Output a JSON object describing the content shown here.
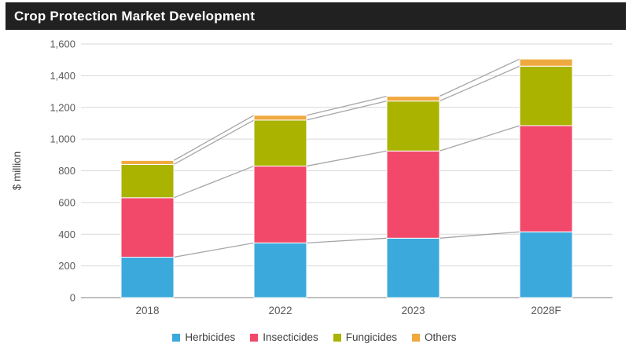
{
  "title": "Crop Protection Market Development",
  "chart_data": {
    "type": "bar",
    "stacked": true,
    "title": "Crop Protection Market Development",
    "categories": [
      "2018",
      "2022",
      "2023",
      "2028F"
    ],
    "series": [
      {
        "name": "Herbicides",
        "color": "#3BA9DC",
        "values": [
          255,
          345,
          375,
          415
        ]
      },
      {
        "name": "Insecticides",
        "color": "#F2496B",
        "values": [
          375,
          485,
          550,
          670
        ]
      },
      {
        "name": "Fungicides",
        "color": "#A9B300",
        "values": [
          210,
          290,
          315,
          375
        ]
      },
      {
        "name": "Others",
        "color": "#EFA93E",
        "values": [
          25,
          30,
          30,
          45
        ]
      }
    ],
    "stack_totals": [
      865,
      1150,
      1270,
      1505
    ],
    "xlabel": "",
    "ylabel": "$ million",
    "ylim": [
      0,
      1600
    ],
    "ytick_step": 200,
    "ytick_labels": [
      "0",
      "200",
      "400",
      "600",
      "800",
      "1,000",
      "1,200",
      "1,400",
      "1,600"
    ],
    "grid": true,
    "series_lines": true,
    "legend_position": "bottom"
  },
  "colors": {
    "title_bar_bg": "#212121",
    "title_text": "#FFFFFF",
    "gridline": "#D9D9D9",
    "axis_line": "#ABABAB",
    "series_line": "#A6A6A6",
    "tick_label": "#595959",
    "axis_title": "#404040",
    "bar_border": "#FFFFFF",
    "background": "#FFFFFF"
  }
}
